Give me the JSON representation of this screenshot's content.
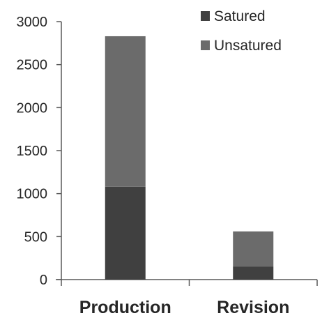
{
  "chart_data": {
    "type": "bar",
    "stacked": true,
    "categories": [
      "Production",
      "Revision"
    ],
    "series": [
      {
        "name": "Satured",
        "values": [
          1080,
          150
        ],
        "color": "#404040"
      },
      {
        "name": "Unsatured",
        "values": [
          1750,
          410
        ],
        "color": "#6b6b6b"
      }
    ],
    "ylim": [
      0,
      3000
    ],
    "yticks": [
      0,
      500,
      1000,
      1500,
      2000,
      2500,
      3000
    ],
    "ytick_labels": [
      "0",
      "500",
      "1000",
      "1500",
      "2000",
      "2500",
      "3000"
    ],
    "grid": false,
    "legend": "top-right",
    "axis_color": "#595959"
  }
}
